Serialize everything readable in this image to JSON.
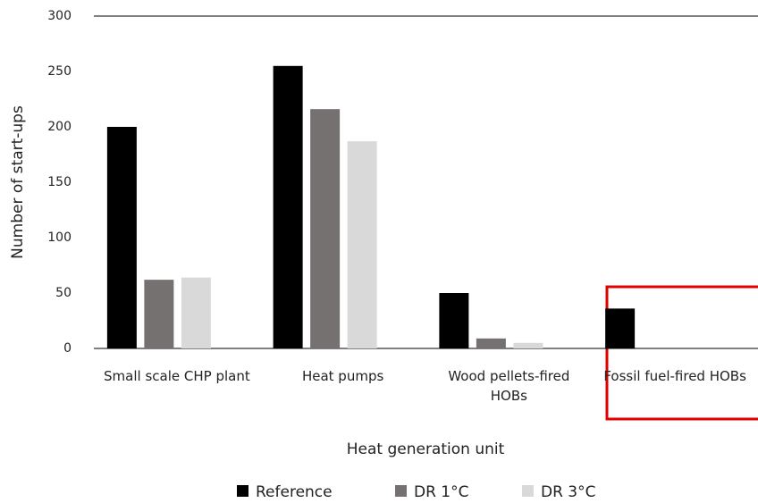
{
  "chart_data": {
    "type": "bar",
    "x_label": "Heat generation unit",
    "y_label": "Number of start-ups",
    "categories": [
      "Small scale CHP plant",
      "Heat pumps",
      "Wood pellets-fired HOBs",
      "Fossil fuel-fired HOBs"
    ],
    "series": [
      {
        "name": "Reference",
        "color": "#000000",
        "values": [
          200,
          255,
          50,
          36
        ]
      },
      {
        "name": "DR 1°C",
        "color": "#767171",
        "values": [
          62,
          216,
          9,
          0
        ]
      },
      {
        "name": "DR 3°C",
        "color": "#d9d9d9",
        "values": [
          64,
          187,
          5,
          0
        ]
      }
    ],
    "ylim": [
      0,
      300
    ],
    "yticks": [
      0,
      50,
      100,
      150,
      200,
      250,
      300
    ],
    "grid": false,
    "legend": "bottom"
  }
}
